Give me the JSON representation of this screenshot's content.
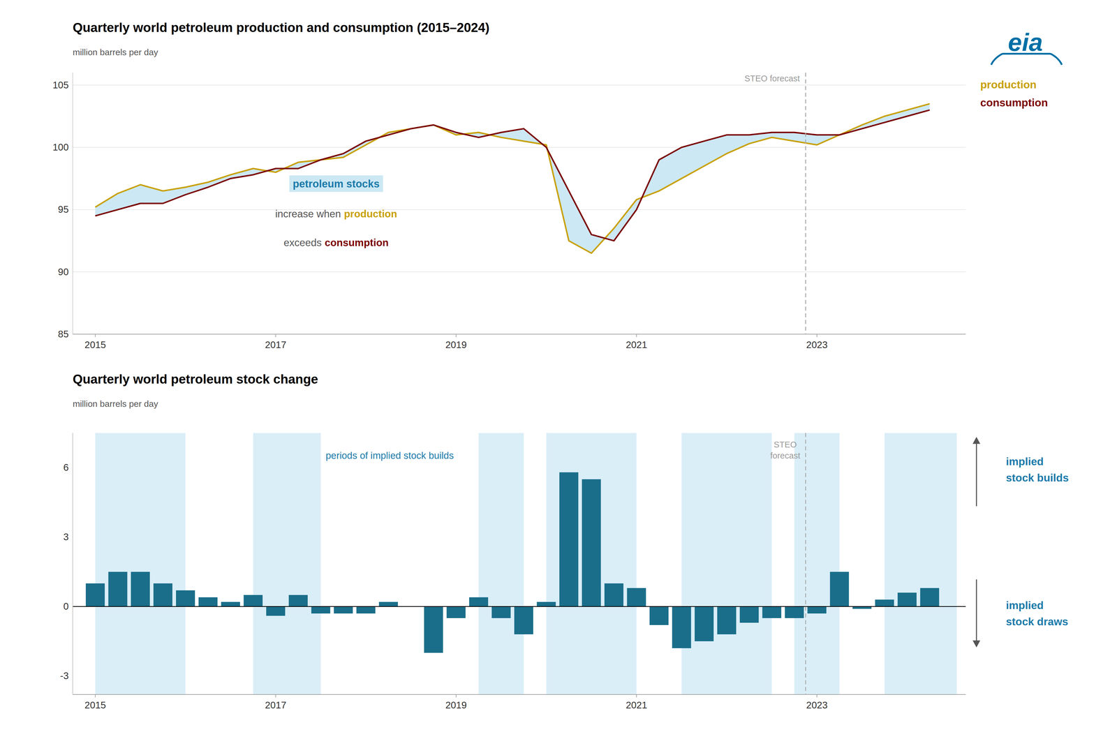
{
  "chart_data": [
    {
      "type": "line",
      "title": "Quarterly world petroleum production and consumption (2015–2024)",
      "ylabel": "million barrels per day",
      "x": [
        2015.0,
        2015.25,
        2015.5,
        2015.75,
        2016.0,
        2016.25,
        2016.5,
        2016.75,
        2017.0,
        2017.25,
        2017.5,
        2017.75,
        2018.0,
        2018.25,
        2018.5,
        2018.75,
        2019.0,
        2019.25,
        2019.5,
        2019.75,
        2020.0,
        2020.25,
        2020.5,
        2020.75,
        2021.0,
        2021.25,
        2021.5,
        2021.75,
        2022.0,
        2022.25,
        2022.5,
        2022.75,
        2023.0,
        2023.25,
        2023.5,
        2023.75,
        2024.0,
        2024.25
      ],
      "series": [
        {
          "name": "production",
          "color": "#C8A000",
          "values": [
            95.2,
            96.3,
            97.0,
            96.5,
            96.8,
            97.2,
            97.8,
            98.3,
            98.0,
            98.8,
            99.0,
            99.2,
            100.2,
            101.2,
            101.5,
            101.8,
            101.0,
            101.2,
            100.8,
            100.5,
            100.2,
            92.5,
            91.5,
            93.5,
            95.8,
            96.5,
            97.5,
            98.5,
            99.5,
            100.3,
            100.8,
            100.5,
            100.2,
            101.0,
            101.8,
            102.5,
            103.0,
            103.5
          ]
        },
        {
          "name": "consumption",
          "color": "#7B0000",
          "values": [
            94.5,
            95.0,
            95.5,
            95.5,
            96.2,
            96.8,
            97.5,
            97.8,
            98.3,
            98.3,
            99.0,
            99.5,
            100.5,
            101.0,
            101.5,
            101.8,
            101.2,
            100.8,
            101.2,
            101.5,
            100.0,
            96.5,
            93.0,
            92.5,
            95.0,
            99.0,
            100.0,
            100.5,
            101.0,
            101.0,
            101.2,
            101.2,
            101.0,
            101.0,
            101.5,
            102.0,
            102.5,
            103.0
          ]
        }
      ],
      "fill_color": "#cce8f4",
      "xlim": [
        2014.75,
        2024.65
      ],
      "xticks": [
        2015,
        2017,
        2019,
        2021,
        2023
      ],
      "ylim": [
        85,
        106
      ],
      "yticks": [
        85,
        90,
        95,
        100,
        105
      ],
      "grid": true,
      "legend": "right",
      "forecast_line": {
        "x": 2022.875,
        "label": "STEO forecast"
      },
      "annotation_lines": [
        [
          "petroleum stocks"
        ],
        [
          "increase when",
          "production"
        ],
        [
          "exceeds",
          "consumption"
        ]
      ],
      "logo": "eia",
      "logo_color": "#006fa6"
    },
    {
      "type": "bar",
      "title": "Quarterly world petroleum stock change",
      "ylabel": "million barrels per day",
      "x": [
        2015.0,
        2015.25,
        2015.5,
        2015.75,
        2016.0,
        2016.25,
        2016.5,
        2016.75,
        2017.0,
        2017.25,
        2017.5,
        2017.75,
        2018.0,
        2018.25,
        2018.5,
        2018.75,
        2019.0,
        2019.25,
        2019.5,
        2019.75,
        2020.0,
        2020.25,
        2020.5,
        2020.75,
        2021.0,
        2021.25,
        2021.5,
        2021.75,
        2022.0,
        2022.25,
        2022.5,
        2022.75,
        2023.0,
        2023.25,
        2023.5,
        2023.75,
        2024.0,
        2024.25
      ],
      "values": [
        1.0,
        1.5,
        1.5,
        1.0,
        0.7,
        0.4,
        0.2,
        0.5,
        -0.4,
        0.5,
        -0.3,
        -0.3,
        -0.3,
        0.2,
        0.0,
        -2.0,
        -0.5,
        0.4,
        -0.5,
        -1.2,
        0.2,
        5.8,
        5.5,
        1.0,
        0.8,
        -0.8,
        -1.8,
        -1.5,
        -1.2,
        -0.7,
        -0.5,
        -0.5,
        -0.3,
        1.5,
        -0.1,
        0.3,
        0.6,
        0.8
      ],
      "color": "#1a6e8a",
      "xlim": [
        2014.75,
        2024.65
      ],
      "xticks": [
        2015,
        2017,
        2019,
        2021,
        2023
      ],
      "ylim": [
        -3.8,
        7.5
      ],
      "yticks": [
        -3,
        0,
        3,
        6
      ],
      "grid": false,
      "shaded_periods": [
        [
          2015.0,
          2016.0
        ],
        [
          2016.75,
          2017.5
        ],
        [
          2019.25,
          2019.75
        ],
        [
          2020.0,
          2021.0
        ],
        [
          2021.5,
          2022.5
        ],
        [
          2022.75,
          2023.25
        ],
        [
          2023.75,
          2024.55
        ]
      ],
      "shade_color": "#daeef8",
      "shaded_label": "periods of implied stock builds",
      "forecast_line": {
        "x": 2022.875,
        "label": [
          "STEO",
          "forecast"
        ]
      },
      "side_labels": [
        [
          "implied",
          "stock builds"
        ],
        [
          "implied",
          "stock draws"
        ]
      ]
    }
  ]
}
